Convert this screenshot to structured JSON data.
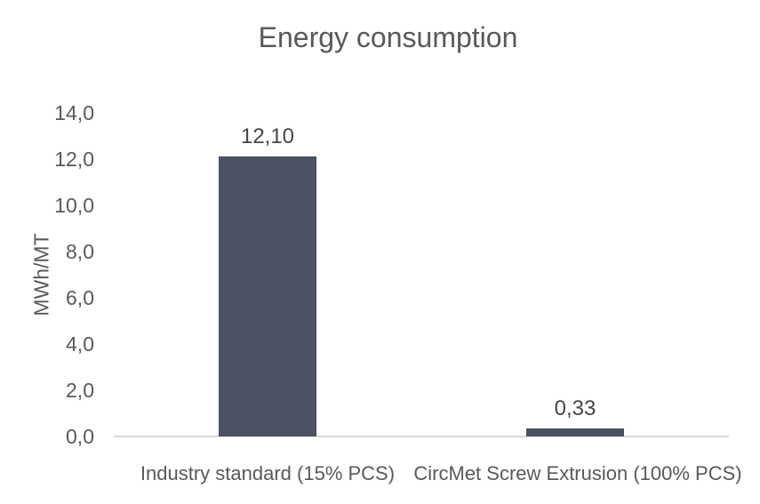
{
  "chart_data": {
    "type": "bar",
    "title": "Energy consumption",
    "ylabel": "MWh/MT",
    "xlabel": "",
    "categories": [
      "Industry standard (15% PCS)",
      "CircMet Screw Extrusion (100% PCS)"
    ],
    "values": [
      12.1,
      0.33
    ],
    "value_labels": [
      "12,10",
      "0,33"
    ],
    "ytick_labels": [
      "0,0",
      "2,0",
      "4,0",
      "6,0",
      "8,0",
      "10,0",
      "12,0",
      "14,0"
    ],
    "ylim": [
      0,
      14
    ],
    "ytick_step": 2,
    "grid": false,
    "legend_position": "none",
    "bar_color": "#4C5164",
    "axis_line_color": "#D9D9D9",
    "title_color": "#595959",
    "axis_text_color": "#595959",
    "data_label_color": "#444444"
  }
}
